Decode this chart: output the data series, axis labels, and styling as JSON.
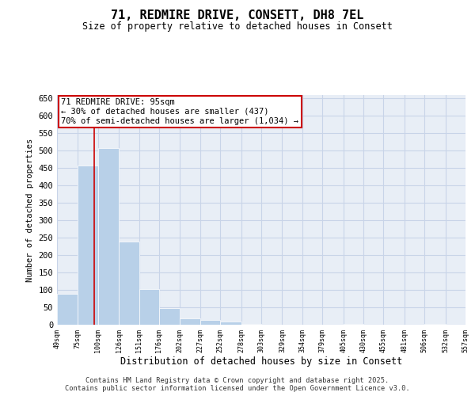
{
  "title_line1": "71, REDMIRE DRIVE, CONSETT, DH8 7EL",
  "title_line2": "Size of property relative to detached houses in Consett",
  "xlabel": "Distribution of detached houses by size in Consett",
  "ylabel": "Number of detached properties",
  "bar_edges": [
    49,
    75,
    100,
    126,
    151,
    176,
    202,
    227,
    252,
    278,
    303,
    329,
    354,
    379,
    405,
    430,
    455,
    481,
    506,
    532,
    557
  ],
  "bar_values": [
    88,
    457,
    507,
    238,
    103,
    48,
    18,
    13,
    8,
    2,
    0,
    0,
    0,
    0,
    3,
    0,
    0,
    0,
    2,
    0,
    3
  ],
  "bar_color": "#b8d0e8",
  "grid_color": "#c8d4e8",
  "background_color": "#e8eef6",
  "vertical_line_x": 95,
  "vertical_line_color": "#cc0000",
  "annotation_line1": "71 REDMIRE DRIVE: 95sqm",
  "annotation_line2": "← 30% of detached houses are smaller (437)",
  "annotation_line3": "70% of semi-detached houses are larger (1,034) →",
  "annotation_box_color": "#cc0000",
  "ylim": [
    0,
    660
  ],
  "yticks": [
    0,
    50,
    100,
    150,
    200,
    250,
    300,
    350,
    400,
    450,
    500,
    550,
    600,
    650
  ],
  "footer_line1": "Contains HM Land Registry data © Crown copyright and database right 2025.",
  "footer_line2": "Contains public sector information licensed under the Open Government Licence v3.0."
}
